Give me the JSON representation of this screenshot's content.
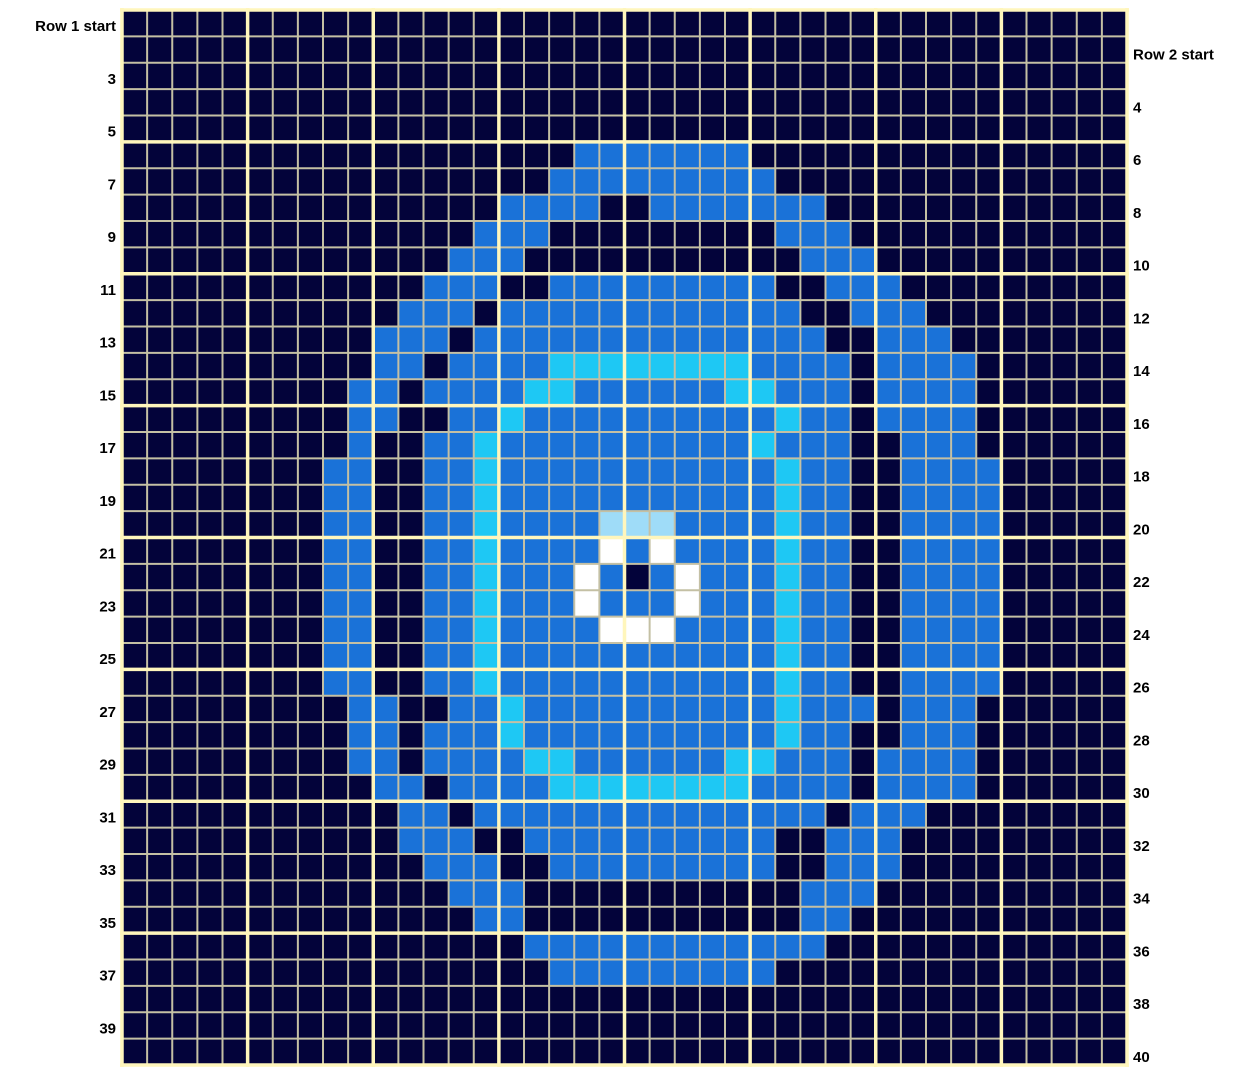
{
  "grid": {
    "palette": {
      "D": "#03033a",
      "B": "#1a72d8",
      "C": "#1ec8f4",
      "L": "#9fdcf8",
      "W": "#ffffff"
    },
    "rows": [
      "DDDDDDDDDDDDDDDDDDDDDDDDDDDDDDDDDDDDDDDD",
      "DDDDDDDDDDDDDDDDDDDDDDDDDDDDDDDDDDDDDDDD",
      "DDDDDDDDDDDDDDDDDDDDDDDDDDDDDDDDDDDDDDDD",
      "DDDDDDDDDDDDDDDDDDDDDDDDDDDDDDDDDDDDDDDD",
      "DDDDDDDDDDDDDDDDDDDDDDDDDDDDDDDDDDDDDDDD",
      "DDDDDDDDDDDDDDDDDDBBBBBBBDDDDDDDDDDDDDDD",
      "DDDDDDDDDDDDDDDDDBBBBBBBBBDDDDDDDDDDDDDD",
      "DDDDDDDDDDDDDDDBBBBDDBBBBBBBDDDDDDDDDDDD",
      "DDDDDDDDDDDDDDBBBDDDDDDDDDBBBDDDDDDDDDDD",
      "DDDDDDDDDDDDDBBBDDDDDDDDDDDBBBDDDDDDDDDD",
      "DDDDDDDDDDDDBBBDDBBBBBBBBBDDBBBDDDDDDDDD",
      "DDDDDDDDDDDBBBDBBBBBBBBBBBBDDBBBDDDDDDDD",
      "DDDDDDDDDDBBBDBBBBBBBBBBBBBBDDBBBDDDDDDD",
      "DDDDDDDDDDBBDBBBBCCCCCCCCBBBBDBBBBDDDDDD",
      "DDDDDDDDDBBDBBBBCCBBBBBBCCBBBDBBBBDDDDDD",
      "DDDDDDDDDBBDDBBCBBBBBBBBBBCBBDBBBBDDDDDD",
      "DDDDDDDDDBDDBBCBBBBBBBBBBCBBBDDBBBDDDDDD",
      "DDDDDDDDBBDDBBCBBBBBBBBBBBCBBDDBBBBDDDDD",
      "DDDDDDDDBBDDBBCBBBBBBBBBBBCBBDDBBBBDDDDD",
      "DDDDDDDDBBDDBBCBBBBLLLBBBBCBBDDBBBBDDDDD",
      "DDDDDDDDBBDDBBCBBBBWBWBBBBCBBDDBBBBDDDDD",
      "DDDDDDDDBBDDBBCBBBWBDBWBBBCBBDDBBBBDDDDD",
      "DDDDDDDDBBDDBBCBBBWBBBWBBBCBBDDBBBBDDDDD",
      "DDDDDDDDBBDDBBCBBBBWWWBBBBCBBDDBBBBDDDDD",
      "DDDDDDDDBBDDBBCBBBBBBBBBBBCBBDDBBBBDDDDD",
      "DDDDDDDDBBDDBBCBBBBBBBBBBBCBBDDBBBBDDDDD",
      "DDDDDDDDDBBDDBBCBBBBBBBBBBCBBBDBBBDDDDDD",
      "DDDDDDDDDBBDBBBCBBBBBBBBBBCBBDDBBBDDDDDD",
      "DDDDDDDDDBBDBBBBCCBBBBBBCCBBBDBBBBDDDDDD",
      "DDDDDDDDDDBBDBBBBCCCCCCCCBBBBDBBBBDDDDDD",
      "DDDDDDDDDDDBBDBBBBBBBBBBBBBBDBBBDDDDDDDD",
      "DDDDDDDDDDDBBBDDBBBBBBBBBBDDBBBDDDDDDDDD",
      "DDDDDDDDDDDDBBBDDBBBBBBBBBDDBBBDDDDDDDDD",
      "DDDDDDDDDDDDDBBBDDDDDDDDDDDBBBDDDDDDDDDD",
      "DDDDDDDDDDDDDDBBDDDDDDDDDDDBBDDDDDDDDDDD",
      "DDDDDDDDDDDDDDDDBBBBBBBBBBBBDDDDDDDDDDDD",
      "DDDDDDDDDDDDDDDDDBBBBBBBBBDDDDDDDDDDDDDD",
      "DDDDDDDDDDDDDDDDDDDDDDDDDDDDDDDDDDDDDDDD",
      "DDDDDDDDDDDDDDDDDDDDDDDDDDDDDDDDDDDDDDDD",
      "DDDDDDDDDDDDDDDDDDDDDDDDDDDDDDDDDDDDDDDD"
    ]
  },
  "left_labels": [
    "Row 1 start",
    "3",
    "5",
    "7",
    "9",
    "11",
    "13",
    "15",
    "17",
    "19",
    "21",
    "23",
    "25",
    "27",
    "29",
    "31",
    "33",
    "35",
    "37",
    "39"
  ],
  "right_labels": [
    "Row 2 start",
    "4",
    "6",
    "8",
    "10",
    "12",
    "14",
    "16",
    "18",
    "20",
    "22",
    "24",
    "26",
    "28",
    "30",
    "32",
    "34",
    "36",
    "38",
    "40"
  ]
}
